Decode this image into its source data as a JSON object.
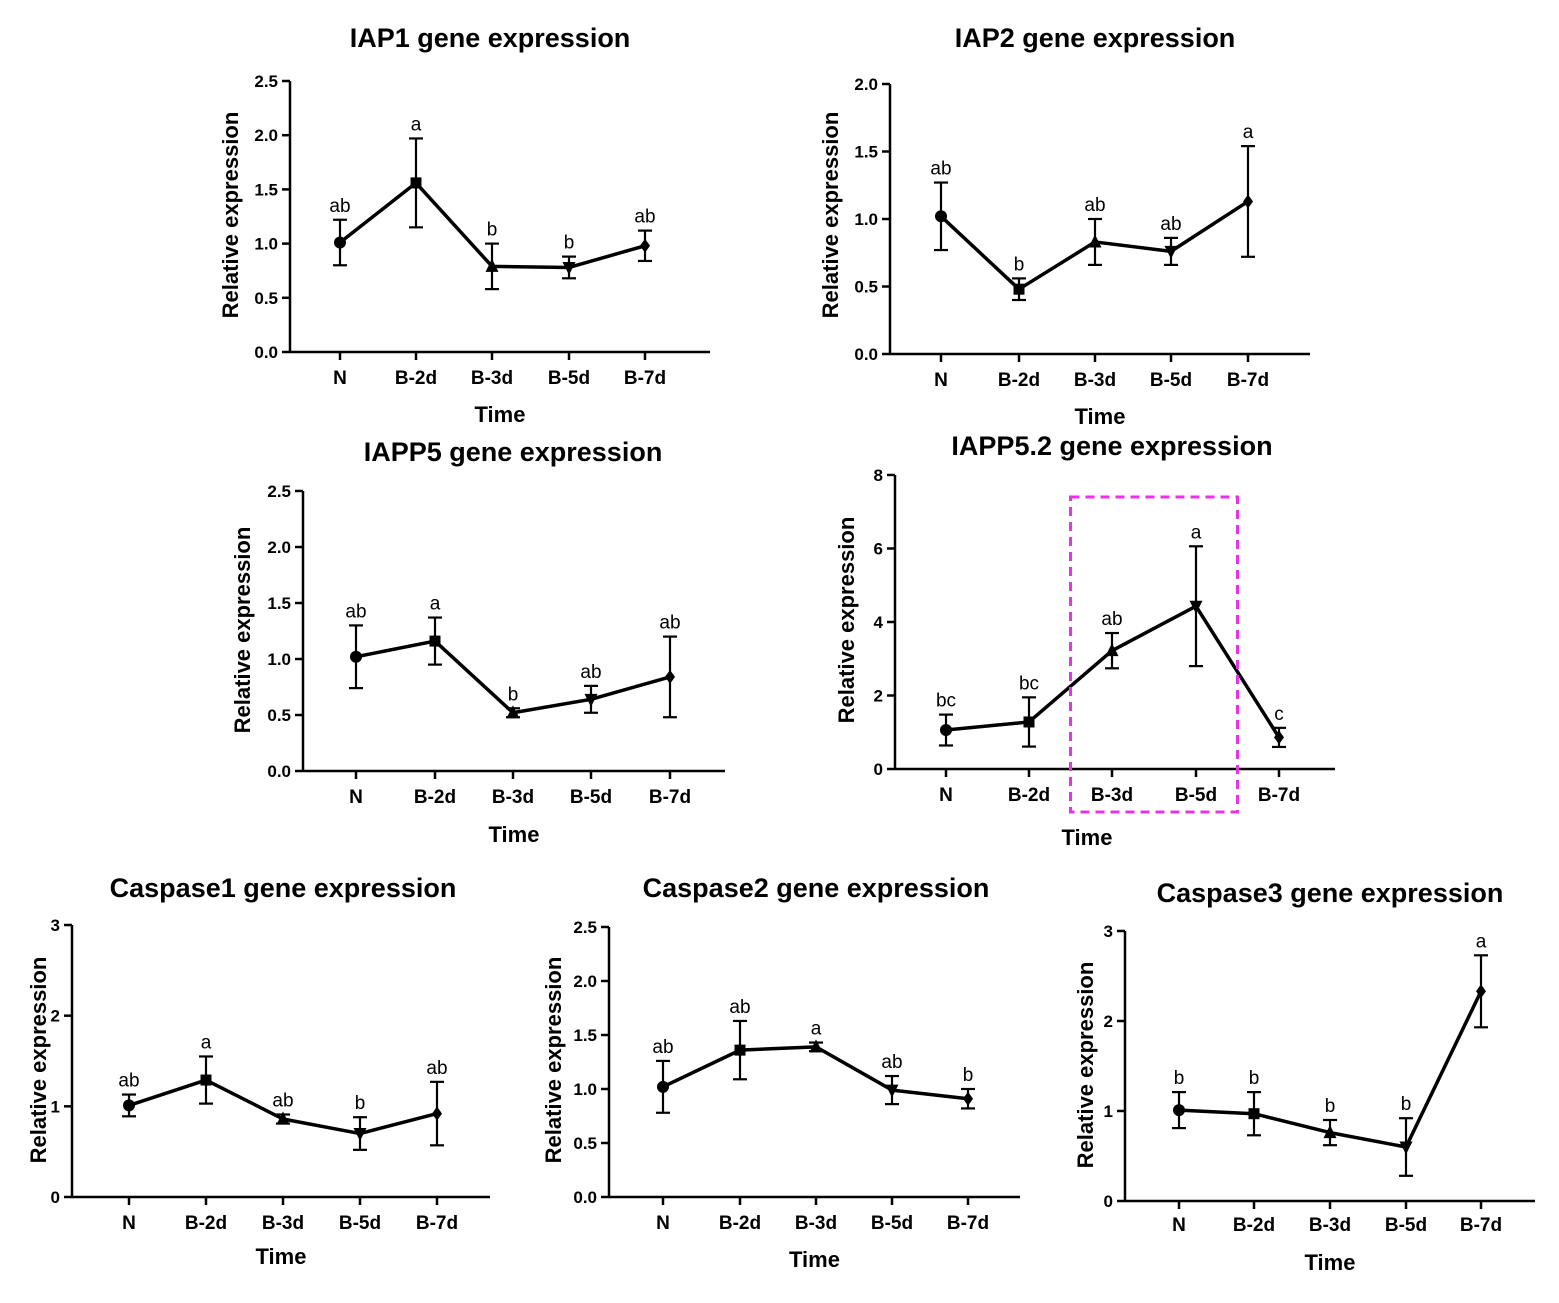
{
  "figure": {
    "highlight_color": "#e633e6",
    "line_color": "#000000"
  },
  "chart_data": [
    {
      "type": "line",
      "title": "IAP1 gene expression",
      "xlabel": "Time",
      "ylabel": "Relative expression",
      "categories": [
        "N",
        "B-2d",
        "B-3d",
        "B-5d",
        "B-7d"
      ],
      "values": [
        1.01,
        1.56,
        0.79,
        0.78,
        0.98
      ],
      "err": [
        0.21,
        0.41,
        0.21,
        0.1,
        0.14
      ],
      "markers": [
        "circle",
        "square",
        "triangle-up",
        "triangle-down",
        "diamond"
      ],
      "labels": [
        "ab",
        "a",
        "b",
        "b",
        "ab"
      ],
      "ylim": [
        0,
        2.5
      ],
      "yticks": [
        "0.0",
        "0.5",
        "1.0",
        "1.5",
        "2.0",
        "2.5"
      ]
    },
    {
      "type": "line",
      "title": "IAP2 gene expression",
      "xlabel": "Time",
      "ylabel": "Relative expression",
      "categories": [
        "N",
        "B-2d",
        "B-3d",
        "B-5d",
        "B-7d"
      ],
      "values": [
        1.02,
        0.48,
        0.83,
        0.76,
        1.13
      ],
      "err": [
        0.25,
        0.08,
        0.17,
        0.1,
        0.41
      ],
      "markers": [
        "circle",
        "square",
        "triangle-up",
        "triangle-down",
        "diamond"
      ],
      "labels": [
        "ab",
        "b",
        "ab",
        "ab",
        "a"
      ],
      "ylim": [
        0,
        2.0
      ],
      "yticks": [
        "0.0",
        "0.5",
        "1.0",
        "1.5",
        "2.0"
      ]
    },
    {
      "type": "line",
      "title": "IAPP5 gene expression",
      "xlabel": "Time",
      "ylabel": "Relative expression",
      "categories": [
        "N",
        "B-2d",
        "B-3d",
        "B-5d",
        "B-7d"
      ],
      "values": [
        1.02,
        1.16,
        0.52,
        0.64,
        0.84
      ],
      "err": [
        0.28,
        0.21,
        0.04,
        0.12,
        0.36
      ],
      "markers": [
        "circle",
        "square",
        "triangle-up",
        "triangle-down",
        "diamond"
      ],
      "labels": [
        "ab",
        "a",
        "b",
        "ab",
        "ab"
      ],
      "ylim": [
        0,
        2.5
      ],
      "yticks": [
        "0.0",
        "0.5",
        "1.0",
        "1.5",
        "2.0",
        "2.5"
      ]
    },
    {
      "type": "line",
      "title": "IAPP5.2 gene expression",
      "xlabel": "Time",
      "ylabel": "Relative expression",
      "categories": [
        "N",
        "B-2d",
        "B-3d",
        "B-5d",
        "B-7d"
      ],
      "values": [
        1.06,
        1.28,
        3.22,
        4.43,
        0.86
      ],
      "err": [
        0.42,
        0.67,
        0.48,
        1.63,
        0.26
      ],
      "markers": [
        "circle",
        "square",
        "triangle-up",
        "triangle-down",
        "diamond"
      ],
      "labels": [
        "bc",
        "bc",
        "ab",
        "a",
        "c"
      ],
      "ylim": [
        0,
        8
      ],
      "yticks": [
        "0",
        "2",
        "4",
        "6",
        "8"
      ],
      "highlight_categories": [
        "B-3d",
        "B-5d"
      ]
    },
    {
      "type": "line",
      "title": "Caspase1 gene expression",
      "xlabel": "Time",
      "ylabel": "Relative expression",
      "categories": [
        "N",
        "B-2d",
        "B-3d",
        "B-5d",
        "B-7d"
      ],
      "values": [
        1.01,
        1.29,
        0.86,
        0.7,
        0.92
      ],
      "err": [
        0.12,
        0.26,
        0.05,
        0.18,
        0.35
      ],
      "markers": [
        "circle",
        "square",
        "triangle-up",
        "triangle-down",
        "diamond"
      ],
      "labels": [
        "ab",
        "a",
        "ab",
        "b",
        "ab"
      ],
      "ylim": [
        0,
        3
      ],
      "yticks": [
        "0",
        "1",
        "2",
        "3"
      ]
    },
    {
      "type": "line",
      "title": "Caspase2 gene expression",
      "xlabel": "Time",
      "ylabel": "Relative expression",
      "categories": [
        "N",
        "B-2d",
        "B-3d",
        "B-5d",
        "B-7d"
      ],
      "values": [
        1.02,
        1.36,
        1.39,
        0.99,
        0.91
      ],
      "err": [
        0.24,
        0.27,
        0.04,
        0.13,
        0.09
      ],
      "markers": [
        "circle",
        "square",
        "triangle-up",
        "triangle-down",
        "diamond"
      ],
      "labels": [
        "ab",
        "ab",
        "a",
        "ab",
        "b"
      ],
      "ylim": [
        0,
        2.5
      ],
      "yticks": [
        "0.0",
        "0.5",
        "1.0",
        "1.5",
        "2.0",
        "2.5"
      ]
    },
    {
      "type": "line",
      "title": "Caspase3 gene expression",
      "xlabel": "Time",
      "ylabel": "Relative expression",
      "categories": [
        "N",
        "B-2d",
        "B-3d",
        "B-5d",
        "B-7d"
      ],
      "values": [
        1.01,
        0.97,
        0.76,
        0.6,
        2.33
      ],
      "err": [
        0.2,
        0.24,
        0.14,
        0.32,
        0.4
      ],
      "markers": [
        "circle",
        "square",
        "triangle-up",
        "triangle-down",
        "diamond"
      ],
      "labels": [
        "b",
        "b",
        "b",
        "b",
        "a"
      ],
      "ylim": [
        0,
        3
      ],
      "yticks": [
        "0",
        "1",
        "2",
        "3"
      ]
    }
  ]
}
